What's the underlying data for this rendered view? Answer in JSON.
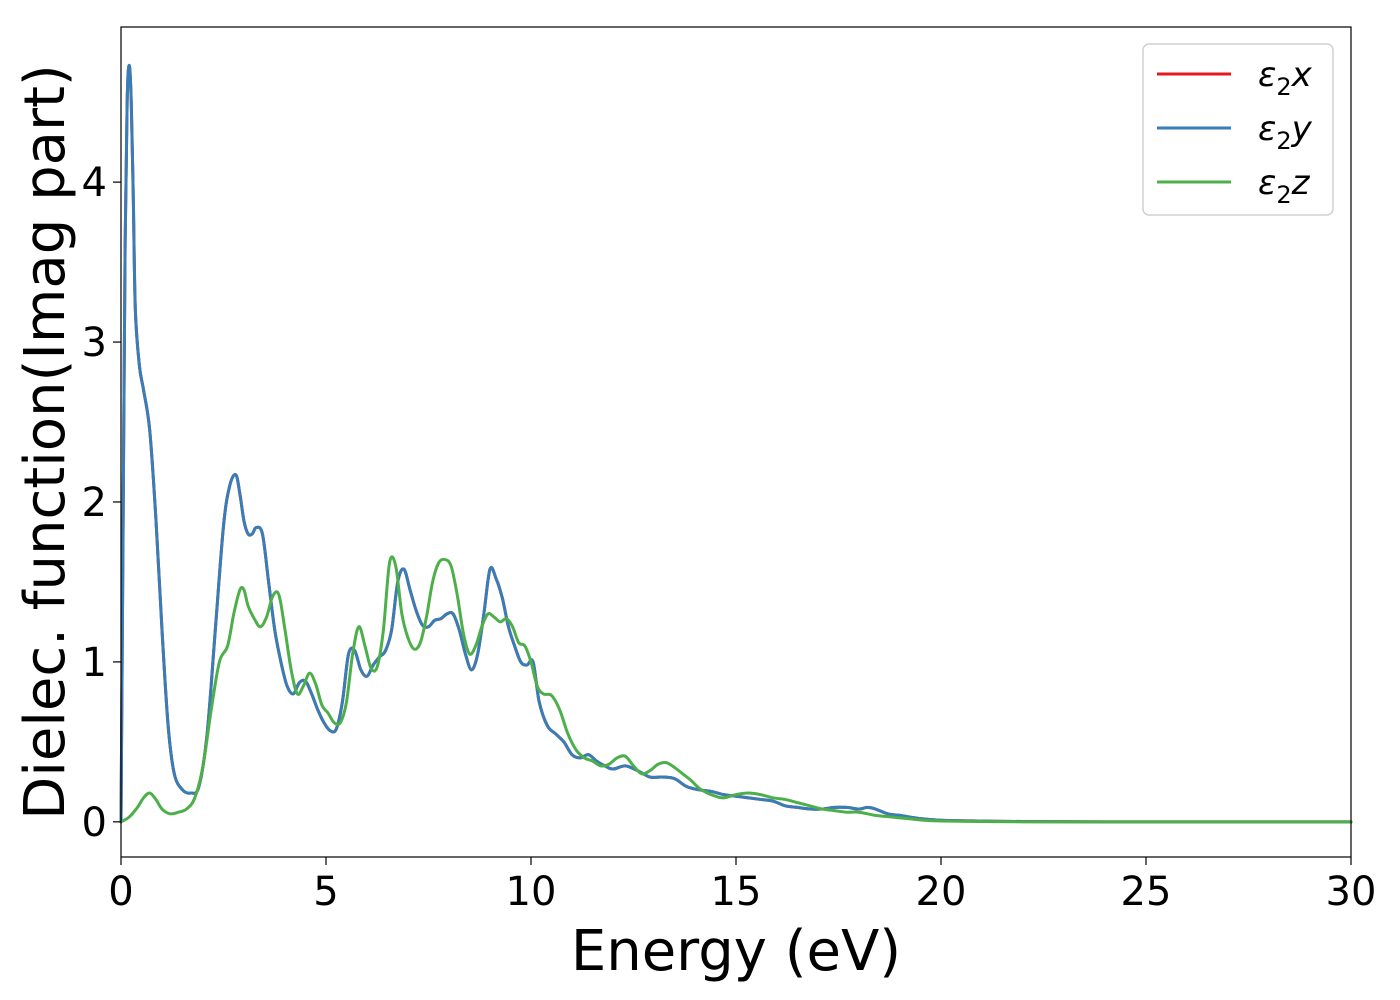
{
  "chart_data": {
    "type": "line",
    "title": "",
    "xlabel": "Energy (eV)",
    "ylabel": "Dielec. function(Imag part)",
    "xlim": [
      0,
      30
    ],
    "ylim": [
      -0.22,
      4.97
    ],
    "xticks": [
      0,
      5,
      10,
      15,
      20,
      25,
      30
    ],
    "yticks": [
      0,
      1,
      2,
      3,
      4
    ],
    "grid": false,
    "legend_position": "top-right",
    "series": [
      {
        "name": "ε₂x",
        "legend_base": "ε",
        "legend_sub": "2",
        "legend_axis": "x",
        "color": "#e41a1c",
        "x": [
          0,
          0.05,
          0.1,
          0.15,
          0.2,
          0.25,
          0.3,
          0.35,
          0.45,
          0.55,
          0.7,
          0.85,
          1.0,
          1.15,
          1.3,
          1.5,
          1.7,
          1.9,
          2.1,
          2.3,
          2.5,
          2.65,
          2.8,
          2.9,
          3.0,
          3.1,
          3.2,
          3.3,
          3.45,
          3.6,
          3.75,
          3.9,
          4.05,
          4.2,
          4.35,
          4.5,
          4.65,
          4.8,
          4.95,
          5.1,
          5.25,
          5.4,
          5.55,
          5.7,
          5.85,
          6.0,
          6.15,
          6.3,
          6.45,
          6.6,
          6.75,
          6.9,
          7.05,
          7.2,
          7.35,
          7.5,
          7.65,
          7.8,
          7.95,
          8.1,
          8.25,
          8.4,
          8.55,
          8.7,
          8.85,
          9.0,
          9.15,
          9.3,
          9.45,
          9.6,
          9.75,
          9.9,
          10.05,
          10.2,
          10.4,
          10.6,
          10.8,
          11.0,
          11.2,
          11.4,
          11.6,
          11.8,
          12.0,
          12.3,
          12.6,
          12.9,
          13.2,
          13.5,
          13.8,
          14.1,
          14.4,
          14.7,
          15.0,
          15.3,
          15.6,
          15.9,
          16.2,
          16.5,
          16.8,
          17.1,
          17.4,
          17.7,
          18.0,
          18.2,
          18.4,
          18.7,
          19.0,
          19.5,
          20.0,
          21.0,
          22.0,
          24.0,
          26.0,
          28.0,
          30.0
        ],
        "values": [
          0,
          1.8,
          3.6,
          4.5,
          4.73,
          4.5,
          3.9,
          3.2,
          2.85,
          2.7,
          2.45,
          1.9,
          1.2,
          0.6,
          0.3,
          0.2,
          0.18,
          0.22,
          0.55,
          1.2,
          1.85,
          2.1,
          2.17,
          2.05,
          1.88,
          1.8,
          1.8,
          1.84,
          1.8,
          1.5,
          1.2,
          1.0,
          0.85,
          0.8,
          0.87,
          0.88,
          0.8,
          0.7,
          0.62,
          0.57,
          0.58,
          0.75,
          1.05,
          1.07,
          0.95,
          0.91,
          0.98,
          1.03,
          1.07,
          1.2,
          1.5,
          1.58,
          1.45,
          1.32,
          1.23,
          1.22,
          1.26,
          1.27,
          1.3,
          1.3,
          1.2,
          1.05,
          0.95,
          1.05,
          1.3,
          1.58,
          1.52,
          1.4,
          1.22,
          1.1,
          1.0,
          0.98,
          1.0,
          0.75,
          0.6,
          0.55,
          0.5,
          0.42,
          0.4,
          0.42,
          0.38,
          0.35,
          0.33,
          0.35,
          0.32,
          0.28,
          0.28,
          0.27,
          0.22,
          0.2,
          0.19,
          0.17,
          0.16,
          0.15,
          0.14,
          0.13,
          0.1,
          0.09,
          0.08,
          0.08,
          0.09,
          0.09,
          0.08,
          0.09,
          0.08,
          0.05,
          0.04,
          0.02,
          0.01,
          0.005,
          0.002,
          0,
          0,
          0,
          0
        ]
      },
      {
        "name": "ε₂y",
        "legend_base": "ε",
        "legend_sub": "2",
        "legend_axis": "y",
        "color": "#377eb8",
        "x": [
          0,
          0.05,
          0.1,
          0.15,
          0.2,
          0.25,
          0.3,
          0.35,
          0.45,
          0.55,
          0.7,
          0.85,
          1.0,
          1.15,
          1.3,
          1.5,
          1.7,
          1.9,
          2.1,
          2.3,
          2.5,
          2.65,
          2.8,
          2.9,
          3.0,
          3.1,
          3.2,
          3.3,
          3.45,
          3.6,
          3.75,
          3.9,
          4.05,
          4.2,
          4.35,
          4.5,
          4.65,
          4.8,
          4.95,
          5.1,
          5.25,
          5.4,
          5.55,
          5.7,
          5.85,
          6.0,
          6.15,
          6.3,
          6.45,
          6.6,
          6.75,
          6.9,
          7.05,
          7.2,
          7.35,
          7.5,
          7.65,
          7.8,
          7.95,
          8.1,
          8.25,
          8.4,
          8.55,
          8.7,
          8.85,
          9.0,
          9.15,
          9.3,
          9.45,
          9.6,
          9.75,
          9.9,
          10.05,
          10.2,
          10.4,
          10.6,
          10.8,
          11.0,
          11.2,
          11.4,
          11.6,
          11.8,
          12.0,
          12.3,
          12.6,
          12.9,
          13.2,
          13.5,
          13.8,
          14.1,
          14.4,
          14.7,
          15.0,
          15.3,
          15.6,
          15.9,
          16.2,
          16.5,
          16.8,
          17.1,
          17.4,
          17.7,
          18.0,
          18.2,
          18.4,
          18.7,
          19.0,
          19.5,
          20.0,
          21.0,
          22.0,
          24.0,
          26.0,
          28.0,
          30.0
        ],
        "values": [
          0,
          1.8,
          3.6,
          4.5,
          4.73,
          4.5,
          3.9,
          3.2,
          2.85,
          2.7,
          2.45,
          1.9,
          1.2,
          0.6,
          0.3,
          0.2,
          0.18,
          0.22,
          0.55,
          1.2,
          1.85,
          2.1,
          2.17,
          2.05,
          1.88,
          1.8,
          1.8,
          1.84,
          1.8,
          1.5,
          1.2,
          1.0,
          0.85,
          0.8,
          0.87,
          0.88,
          0.8,
          0.7,
          0.62,
          0.57,
          0.58,
          0.75,
          1.05,
          1.07,
          0.95,
          0.91,
          0.98,
          1.03,
          1.07,
          1.2,
          1.5,
          1.58,
          1.45,
          1.32,
          1.23,
          1.22,
          1.26,
          1.27,
          1.3,
          1.3,
          1.2,
          1.05,
          0.95,
          1.05,
          1.3,
          1.58,
          1.52,
          1.4,
          1.22,
          1.1,
          1.0,
          0.98,
          1.0,
          0.75,
          0.6,
          0.55,
          0.5,
          0.42,
          0.4,
          0.42,
          0.38,
          0.35,
          0.33,
          0.35,
          0.32,
          0.28,
          0.28,
          0.27,
          0.22,
          0.2,
          0.19,
          0.17,
          0.16,
          0.15,
          0.14,
          0.13,
          0.1,
          0.09,
          0.08,
          0.08,
          0.09,
          0.09,
          0.08,
          0.09,
          0.08,
          0.05,
          0.04,
          0.02,
          0.01,
          0.005,
          0.002,
          0,
          0,
          0,
          0
        ]
      },
      {
        "name": "ε₂z",
        "legend_base": "ε",
        "legend_sub": "2",
        "legend_axis": "z",
        "color": "#4daf4a",
        "x": [
          0,
          0.2,
          0.4,
          0.55,
          0.7,
          0.85,
          1.0,
          1.2,
          1.4,
          1.6,
          1.8,
          2.0,
          2.2,
          2.4,
          2.6,
          2.75,
          2.9,
          3.0,
          3.1,
          3.25,
          3.4,
          3.55,
          3.7,
          3.85,
          4.0,
          4.15,
          4.3,
          4.45,
          4.6,
          4.75,
          4.9,
          5.05,
          5.2,
          5.35,
          5.5,
          5.65,
          5.8,
          5.95,
          6.1,
          6.25,
          6.4,
          6.55,
          6.7,
          6.85,
          7.0,
          7.15,
          7.3,
          7.45,
          7.6,
          7.75,
          7.9,
          8.05,
          8.2,
          8.35,
          8.5,
          8.65,
          8.8,
          8.95,
          9.1,
          9.25,
          9.4,
          9.55,
          9.7,
          9.85,
          10.0,
          10.15,
          10.3,
          10.5,
          10.7,
          10.9,
          11.1,
          11.3,
          11.5,
          11.7,
          11.9,
          12.1,
          12.3,
          12.5,
          12.7,
          12.9,
          13.1,
          13.3,
          13.5,
          13.7,
          13.9,
          14.1,
          14.3,
          14.5,
          14.7,
          15.0,
          15.3,
          15.6,
          15.9,
          16.2,
          16.5,
          16.8,
          17.1,
          17.4,
          17.7,
          18.0,
          18.4,
          18.8,
          19.2,
          19.6,
          20.0,
          21.0,
          22.0,
          24.0,
          26.0,
          28.0,
          30.0
        ],
        "values": [
          0,
          0.03,
          0.09,
          0.15,
          0.18,
          0.14,
          0.08,
          0.05,
          0.06,
          0.08,
          0.15,
          0.35,
          0.7,
          1.0,
          1.1,
          1.3,
          1.45,
          1.45,
          1.35,
          1.27,
          1.22,
          1.28,
          1.41,
          1.42,
          1.2,
          0.95,
          0.8,
          0.85,
          0.93,
          0.86,
          0.73,
          0.68,
          0.62,
          0.62,
          0.75,
          1.05,
          1.22,
          1.1,
          0.96,
          0.97,
          1.2,
          1.62,
          1.6,
          1.3,
          1.15,
          1.08,
          1.12,
          1.28,
          1.5,
          1.62,
          1.64,
          1.6,
          1.42,
          1.18,
          1.05,
          1.1,
          1.22,
          1.3,
          1.28,
          1.25,
          1.27,
          1.22,
          1.12,
          1.1,
          1.0,
          0.85,
          0.8,
          0.79,
          0.7,
          0.55,
          0.45,
          0.4,
          0.38,
          0.35,
          0.36,
          0.4,
          0.41,
          0.35,
          0.3,
          0.32,
          0.36,
          0.37,
          0.34,
          0.3,
          0.26,
          0.21,
          0.18,
          0.16,
          0.15,
          0.17,
          0.18,
          0.17,
          0.15,
          0.14,
          0.12,
          0.1,
          0.08,
          0.07,
          0.06,
          0.06,
          0.04,
          0.03,
          0.02,
          0.01,
          0.005,
          0.002,
          0,
          0,
          0,
          0,
          0
        ]
      }
    ]
  }
}
